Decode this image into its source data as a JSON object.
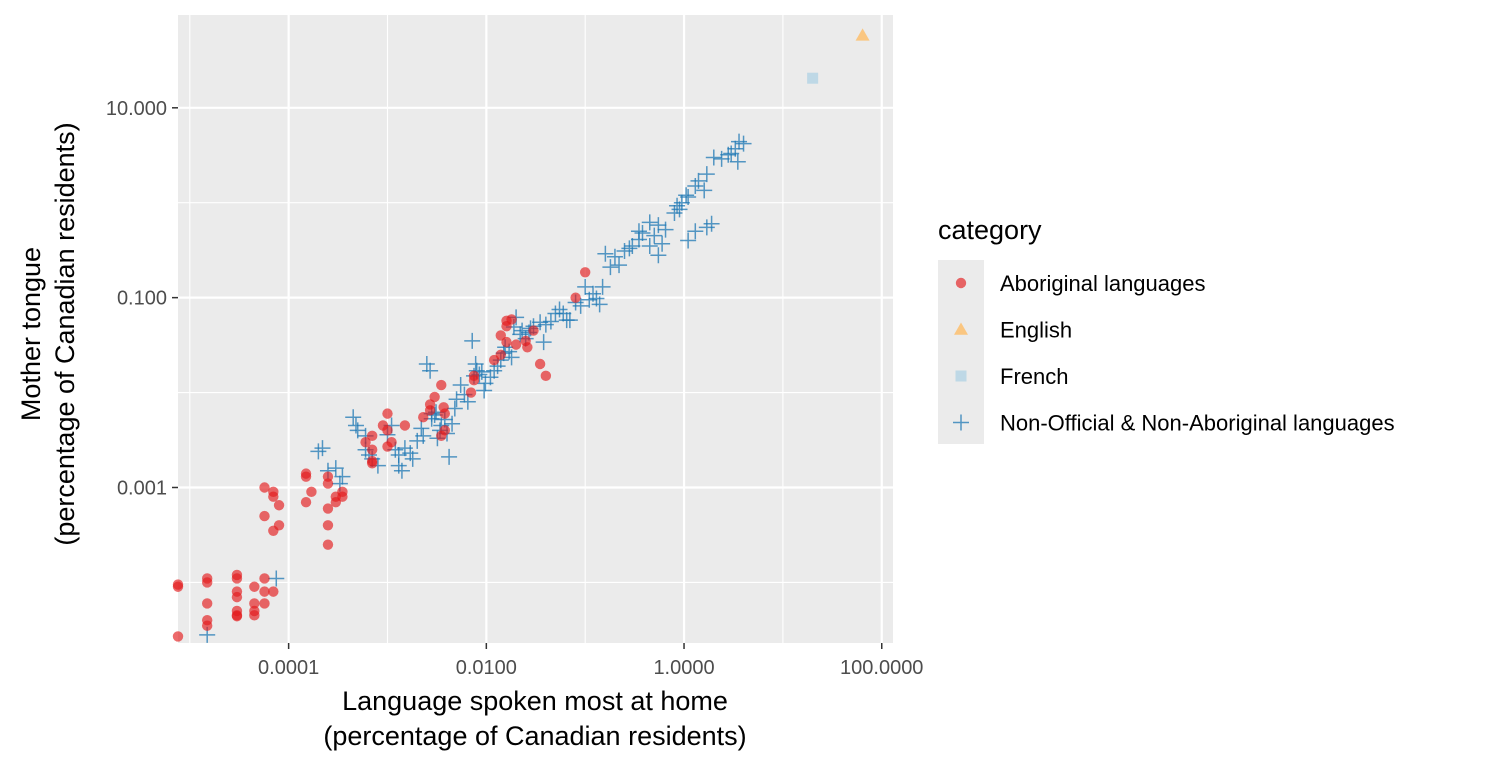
{
  "chart_data": {
    "type": "scatter",
    "title": "",
    "xlabel": [
      "Language spoken most at home",
      "(percentage of Canadian residents)"
    ],
    "ylabel": [
      "Mother tongue",
      "(percentage of Canadian residents)"
    ],
    "x_scale": "log10",
    "y_scale": "log10",
    "xlim": [
      7.6e-06,
      130
    ],
    "ylim": [
      2.3e-05,
      95
    ],
    "x_ticks": [
      {
        "value": 0.0001,
        "label": "0.0001"
      },
      {
        "value": 0.01,
        "label": "0.0100"
      },
      {
        "value": 1,
        "label": "1.0000"
      },
      {
        "value": 100,
        "label": "100.0000"
      }
    ],
    "y_ticks": [
      {
        "value": 0.001,
        "label": "0.001"
      },
      {
        "value": 0.1,
        "label": "0.100"
      },
      {
        "value": 10,
        "label": "10.000"
      }
    ],
    "grid": true,
    "legend": {
      "title": "category",
      "placement": "right"
    },
    "series": [
      {
        "name": "Aboriginal languages",
        "shape": "circle",
        "color": "#e41a1c",
        "points": [
          [
            7.5e-06,
            2.7e-05
          ],
          [
            7.5e-06,
            9e-05
          ],
          [
            7.5e-06,
            9.5e-05
          ],
          [
            1.5e-05,
            0.0001
          ],
          [
            1.5e-05,
            0.00011
          ],
          [
            1.5e-05,
            6e-05
          ],
          [
            1.5e-05,
            4e-05
          ],
          [
            1.5e-05,
            3.5e-05
          ],
          [
            3e-05,
            0.00012
          ],
          [
            3e-05,
            0.00011
          ],
          [
            3e-05,
            8e-05
          ],
          [
            3e-05,
            7e-05
          ],
          [
            3e-05,
            5e-05
          ],
          [
            3e-05,
            4.5e-05
          ],
          [
            3e-05,
            4.4e-05
          ],
          [
            4.5e-05,
            9e-05
          ],
          [
            4.5e-05,
            6e-05
          ],
          [
            4.5e-05,
            5e-05
          ],
          [
            4.5e-05,
            4.5e-05
          ],
          [
            5.7e-05,
            0.001
          ],
          [
            5.7e-05,
            0.0005
          ],
          [
            5.7e-05,
            0.00011
          ],
          [
            5.7e-05,
            8e-05
          ],
          [
            5.7e-05,
            6e-05
          ],
          [
            7e-05,
            0.0009
          ],
          [
            7e-05,
            0.0008
          ],
          [
            7e-05,
            0.00035
          ],
          [
            7e-05,
            8e-05
          ],
          [
            8e-05,
            0.00065
          ],
          [
            8e-05,
            0.0004
          ],
          [
            0.00015,
            0.0014
          ],
          [
            0.00015,
            0.0013
          ],
          [
            0.00015,
            0.0007
          ],
          [
            0.00017,
            0.0009
          ],
          [
            0.00025,
            0.0013
          ],
          [
            0.00025,
            0.0011
          ],
          [
            0.00025,
            0.0006
          ],
          [
            0.00025,
            0.0004
          ],
          [
            0.00025,
            0.00025
          ],
          [
            0.0003,
            0.0008
          ],
          [
            0.0003,
            0.0007
          ],
          [
            0.00035,
            0.0008
          ],
          [
            0.00035,
            0.0009
          ],
          [
            0.0006,
            0.003
          ],
          [
            0.0007,
            0.0018
          ],
          [
            0.0007,
            0.0019
          ],
          [
            0.0007,
            0.0025
          ],
          [
            0.0007,
            0.0035
          ],
          [
            0.0009,
            0.0045
          ],
          [
            0.001,
            0.006
          ],
          [
            0.001,
            0.004
          ],
          [
            0.001,
            0.0027
          ],
          [
            0.0011,
            0.003
          ],
          [
            0.0015,
            0.0045
          ],
          [
            0.0023,
            0.0055
          ],
          [
            0.0027,
            0.0065
          ],
          [
            0.0027,
            0.0075
          ],
          [
            0.003,
            0.009
          ],
          [
            0.0035,
            0.012
          ],
          [
            0.0035,
            0.0035
          ],
          [
            0.0037,
            0.007
          ],
          [
            0.0038,
            0.006
          ],
          [
            0.0038,
            0.004
          ],
          [
            0.007,
            0.01
          ],
          [
            0.0075,
            0.015
          ],
          [
            0.0075,
            0.0135
          ],
          [
            0.012,
            0.022
          ],
          [
            0.014,
            0.025
          ],
          [
            0.014,
            0.04
          ],
          [
            0.016,
            0.034
          ],
          [
            0.016,
            0.05
          ],
          [
            0.016,
            0.057
          ],
          [
            0.018,
            0.059
          ],
          [
            0.02,
            0.032
          ],
          [
            0.025,
            0.035
          ],
          [
            0.026,
            0.03
          ],
          [
            0.03,
            0.045
          ],
          [
            0.035,
            0.02
          ],
          [
            0.04,
            0.015
          ],
          [
            0.08,
            0.1
          ],
          [
            0.1,
            0.185
          ]
        ]
      },
      {
        "name": "English",
        "shape": "triangle",
        "color": "#fdbf6f",
        "points": [
          [
            64,
            58
          ]
        ]
      },
      {
        "name": "French",
        "shape": "square",
        "color": "#a6cee3",
        "points": [
          [
            20,
            20.5
          ]
        ]
      },
      {
        "name": "Non-Official & Non-Aboriginal languages",
        "shape": "plus",
        "color": "#1f78b4",
        "points": [
          [
            1.5e-05,
            2.8e-05
          ],
          [
            7.5e-05,
            0.00011
          ],
          [
            0.0002,
            0.0024
          ],
          [
            0.00022,
            0.0026
          ],
          [
            0.00025,
            0.0015
          ],
          [
            0.0003,
            0.0016
          ],
          [
            0.00033,
            0.0011
          ],
          [
            0.00035,
            0.0013
          ],
          [
            0.00045,
            0.0055
          ],
          [
            0.00048,
            0.0045
          ],
          [
            0.0005,
            0.004
          ],
          [
            0.0006,
            0.0035
          ],
          [
            0.0006,
            0.0025
          ],
          [
            0.00065,
            0.0022
          ],
          [
            0.0007,
            0.002
          ],
          [
            0.0008,
            0.0017
          ],
          [
            0.001,
            0.0036
          ],
          [
            0.0011,
            0.0045
          ],
          [
            0.0012,
            0.0025
          ],
          [
            0.0013,
            0.0022
          ],
          [
            0.0013,
            0.0017
          ],
          [
            0.0014,
            0.0015
          ],
          [
            0.0015,
            0.0026
          ],
          [
            0.0017,
            0.0023
          ],
          [
            0.0018,
            0.002
          ],
          [
            0.002,
            0.0031
          ],
          [
            0.0022,
            0.0042
          ],
          [
            0.0023,
            0.0035
          ],
          [
            0.0025,
            0.02
          ],
          [
            0.0027,
            0.017
          ],
          [
            0.0028,
            0.0053
          ],
          [
            0.0028,
            0.006
          ],
          [
            0.003,
            0.0058
          ],
          [
            0.0031,
            0.0062
          ],
          [
            0.0032,
            0.0033
          ],
          [
            0.0034,
            0.004
          ],
          [
            0.0035,
            0.0045
          ],
          [
            0.0038,
            0.0052
          ],
          [
            0.004,
            0.0037
          ],
          [
            0.0042,
            0.0021
          ],
          [
            0.0045,
            0.0047
          ],
          [
            0.0048,
            0.0068
          ],
          [
            0.005,
            0.0085
          ],
          [
            0.0055,
            0.012
          ],
          [
            0.006,
            0.0095
          ],
          [
            0.0065,
            0.008
          ],
          [
            0.0072,
            0.035
          ],
          [
            0.0075,
            0.015
          ],
          [
            0.0078,
            0.02
          ],
          [
            0.008,
            0.017
          ],
          [
            0.0085,
            0.0155
          ],
          [
            0.009,
            0.0165
          ],
          [
            0.0095,
            0.0105
          ],
          [
            0.0098,
            0.0125
          ],
          [
            0.011,
            0.0145
          ],
          [
            0.012,
            0.017
          ],
          [
            0.013,
            0.019
          ],
          [
            0.014,
            0.022
          ],
          [
            0.015,
            0.026
          ],
          [
            0.0155,
            0.03
          ],
          [
            0.017,
            0.027
          ],
          [
            0.018,
            0.0235
          ],
          [
            0.019,
            0.049
          ],
          [
            0.02,
            0.062
          ],
          [
            0.022,
            0.041
          ],
          [
            0.023,
            0.045
          ],
          [
            0.025,
            0.037
          ],
          [
            0.027,
            0.043
          ],
          [
            0.028,
            0.0475
          ],
          [
            0.03,
            0.05
          ],
          [
            0.035,
            0.055
          ],
          [
            0.038,
            0.034
          ],
          [
            0.04,
            0.052
          ],
          [
            0.045,
            0.056
          ],
          [
            0.05,
            0.068
          ],
          [
            0.055,
            0.075
          ],
          [
            0.06,
            0.068
          ],
          [
            0.065,
            0.058
          ],
          [
            0.07,
            0.058
          ],
          [
            0.08,
            0.089
          ],
          [
            0.09,
            0.082
          ],
          [
            0.1,
            0.13
          ],
          [
            0.11,
            0.095
          ],
          [
            0.12,
            0.11
          ],
          [
            0.13,
            0.098
          ],
          [
            0.14,
            0.085
          ],
          [
            0.15,
            0.13
          ],
          [
            0.16,
            0.29
          ],
          [
            0.18,
            0.21
          ],
          [
            0.2,
            0.27
          ],
          [
            0.22,
            0.22
          ],
          [
            0.25,
            0.31
          ],
          [
            0.28,
            0.33
          ],
          [
            0.3,
            0.35
          ],
          [
            0.35,
            0.41
          ],
          [
            0.38,
            0.48
          ],
          [
            0.45,
            0.62
          ],
          [
            0.5,
            0.45
          ],
          [
            0.55,
            0.28
          ],
          [
            0.6,
            0.37
          ],
          [
            0.65,
            0.52
          ],
          [
            0.8,
            0.78
          ],
          [
            0.85,
            0.93
          ],
          [
            0.9,
            0.85
          ],
          [
            0.95,
            1.0
          ],
          [
            1.05,
            1.2
          ],
          [
            1.1,
            1.15
          ],
          [
            1.3,
            1.5
          ],
          [
            1.4,
            1.7
          ],
          [
            1.6,
            1.35
          ],
          [
            1.7,
            2.0
          ],
          [
            2.0,
            3.0
          ],
          [
            2.4,
            2.9
          ],
          [
            2.8,
            3.2
          ],
          [
            3.0,
            3.3
          ],
          [
            3.3,
            3.7
          ],
          [
            3.5,
            2.7
          ],
          [
            3.6,
            4.4
          ],
          [
            4.0,
            4.2
          ],
          [
            1.1,
            0.4
          ],
          [
            1.3,
            0.5
          ],
          [
            1.7,
            0.55
          ],
          [
            1.9,
            0.6
          ],
          [
            0.55,
            0.58
          ],
          [
            0.45,
            0.35
          ],
          [
            0.35,
            0.5
          ]
        ]
      }
    ]
  }
}
